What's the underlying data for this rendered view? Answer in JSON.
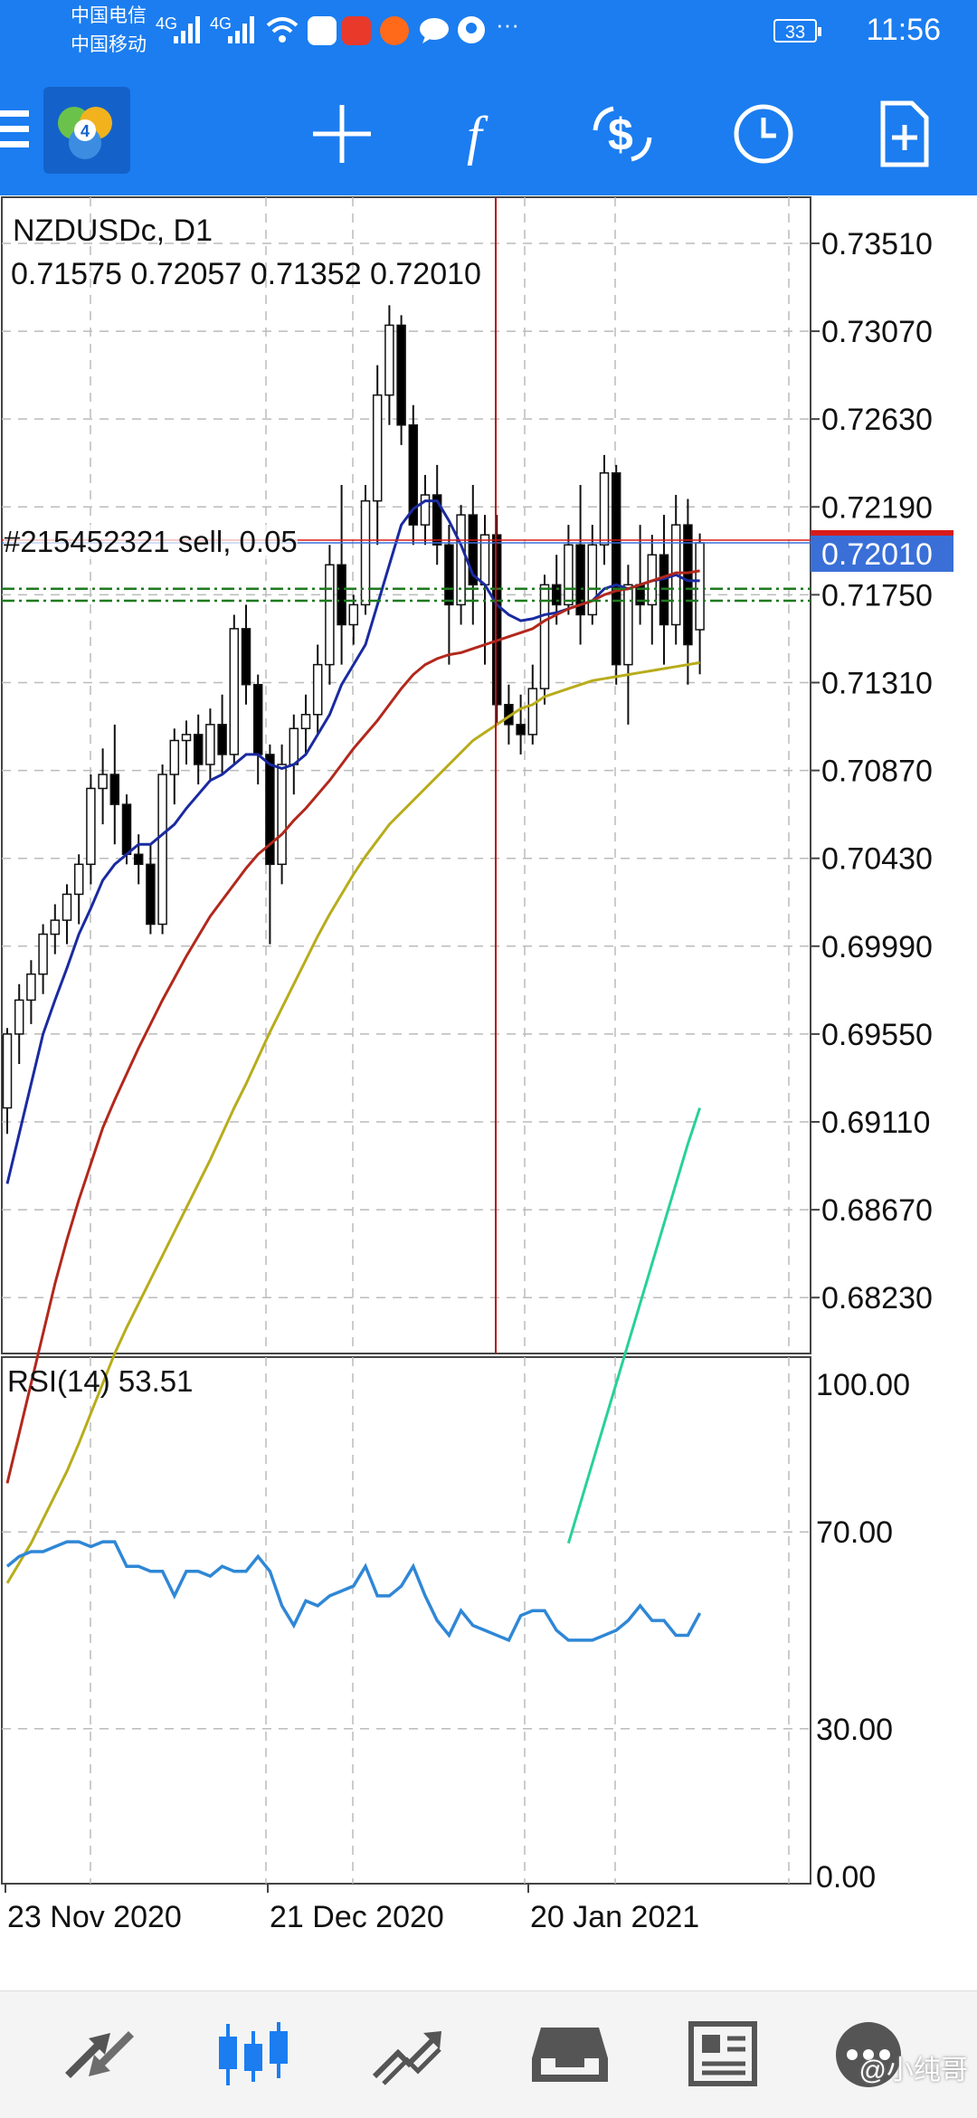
{
  "status_bar": {
    "carrier1": "中国电信",
    "carrier2": "中国移动",
    "network1": "4G",
    "network2": "4G",
    "battery": "33",
    "time": "11:56",
    "more": "···"
  },
  "toolbar": {
    "menu_icon": "menu-icon",
    "logo_icon": "metatrader-logo-icon",
    "crosshair_icon": "crosshair-icon",
    "indicators_icon": "function-icon",
    "objects_icon": "currency-exchange-icon",
    "period_icon": "clock-icon",
    "new_order_icon": "new-order-icon"
  },
  "main_chart": {
    "symbol_title": "NZDUSDc, D1",
    "ohlc": "0.71575 0.72057 0.71352 0.72010",
    "order_label": "#215452321 sell, 0.05",
    "current_price": "0.72010",
    "price_axis": [
      "0.73510",
      "0.73070",
      "0.72630",
      "0.72190",
      "0.71750",
      "0.71310",
      "0.70870",
      "0.70430",
      "0.69990",
      "0.69550",
      "0.69110",
      "0.68670",
      "0.68230"
    ],
    "colors": {
      "bull": "#ffffff",
      "bear": "#000000",
      "ma_fast": "#1a2aa0",
      "ma_mid": "#b2281c",
      "ma_slow": "#b8ac1c",
      "ma_long": "#27d19a",
      "price_line": "#d81b1b",
      "bid_line": "#3a6fd8",
      "crosshair": "#b01818",
      "order_line": "#1f7a1f"
    }
  },
  "rsi": {
    "title": "RSI(14) 53.51",
    "axis": [
      "100.00",
      "70.00",
      "30.00",
      "0.00"
    ],
    "color": "#2f87d6"
  },
  "time_axis": [
    "23 Nov 2020",
    "21 Dec 2020",
    "20 Jan 2021"
  ],
  "chart_data": {
    "type": "candlestick",
    "symbol": "NZDUSDc",
    "timeframe": "D1",
    "y_range": [
      0.6795,
      0.7375
    ],
    "candles": [
      [
        0.6918,
        0.6958,
        0.6905,
        0.6955
      ],
      [
        0.6955,
        0.698,
        0.694,
        0.6972
      ],
      [
        0.6972,
        0.6992,
        0.696,
        0.6985
      ],
      [
        0.6985,
        0.701,
        0.6975,
        0.7005
      ],
      [
        0.7005,
        0.702,
        0.6995,
        0.7012
      ],
      [
        0.7012,
        0.703,
        0.7,
        0.7025
      ],
      [
        0.7025,
        0.7045,
        0.701,
        0.704
      ],
      [
        0.704,
        0.7085,
        0.703,
        0.7078
      ],
      [
        0.7078,
        0.7098,
        0.706,
        0.7085
      ],
      [
        0.7085,
        0.711,
        0.705,
        0.707
      ],
      [
        0.707,
        0.7075,
        0.704,
        0.7045
      ],
      [
        0.7045,
        0.7055,
        0.703,
        0.704
      ],
      [
        0.704,
        0.705,
        0.7005,
        0.701
      ],
      [
        0.701,
        0.709,
        0.7005,
        0.7085
      ],
      [
        0.7085,
        0.7108,
        0.707,
        0.7102
      ],
      [
        0.7102,
        0.7112,
        0.709,
        0.7105
      ],
      [
        0.7105,
        0.7115,
        0.708,
        0.709
      ],
      [
        0.709,
        0.7118,
        0.7082,
        0.711
      ],
      [
        0.711,
        0.7125,
        0.7085,
        0.7095
      ],
      [
        0.7095,
        0.7165,
        0.709,
        0.7158
      ],
      [
        0.7158,
        0.717,
        0.712,
        0.713
      ],
      [
        0.713,
        0.7135,
        0.708,
        0.7095
      ],
      [
        0.7095,
        0.71,
        0.7,
        0.704
      ],
      [
        0.704,
        0.71,
        0.703,
        0.709
      ],
      [
        0.709,
        0.7115,
        0.7075,
        0.7108
      ],
      [
        0.7108,
        0.7125,
        0.7095,
        0.7115
      ],
      [
        0.7115,
        0.715,
        0.7105,
        0.714
      ],
      [
        0.714,
        0.72,
        0.713,
        0.719
      ],
      [
        0.719,
        0.723,
        0.714,
        0.716
      ],
      [
        0.716,
        0.7175,
        0.715,
        0.717
      ],
      [
        0.717,
        0.723,
        0.7165,
        0.7222
      ],
      [
        0.7222,
        0.729,
        0.72,
        0.7275
      ],
      [
        0.7275,
        0.732,
        0.726,
        0.731
      ],
      [
        0.731,
        0.7315,
        0.725,
        0.726
      ],
      [
        0.726,
        0.727,
        0.72,
        0.721
      ],
      [
        0.721,
        0.7235,
        0.72,
        0.7225
      ],
      [
        0.7225,
        0.724,
        0.719,
        0.72
      ],
      [
        0.72,
        0.721,
        0.714,
        0.717
      ],
      [
        0.717,
        0.722,
        0.716,
        0.7215
      ],
      [
        0.7215,
        0.723,
        0.716,
        0.718
      ],
      [
        0.718,
        0.7215,
        0.714,
        0.7205
      ],
      [
        0.7205,
        0.7215,
        0.711,
        0.712
      ],
      [
        0.712,
        0.713,
        0.71,
        0.711
      ],
      [
        0.711,
        0.7125,
        0.7095,
        0.7105
      ],
      [
        0.7105,
        0.714,
        0.71,
        0.7128
      ],
      [
        0.7128,
        0.7185,
        0.712,
        0.718
      ],
      [
        0.718,
        0.7195,
        0.716,
        0.717
      ],
      [
        0.717,
        0.721,
        0.7165,
        0.72
      ],
      [
        0.72,
        0.723,
        0.715,
        0.7165
      ],
      [
        0.7165,
        0.721,
        0.716,
        0.72
      ],
      [
        0.72,
        0.7245,
        0.719,
        0.7236
      ],
      [
        0.7236,
        0.724,
        0.713,
        0.714
      ],
      [
        0.714,
        0.719,
        0.711,
        0.718
      ],
      [
        0.718,
        0.721,
        0.716,
        0.717
      ],
      [
        0.717,
        0.7205,
        0.715,
        0.7195
      ],
      [
        0.7195,
        0.7215,
        0.714,
        0.716
      ],
      [
        0.716,
        0.7225,
        0.715,
        0.721
      ],
      [
        0.721,
        0.7223,
        0.713,
        0.715
      ],
      [
        0.71575,
        0.72057,
        0.71352,
        0.7201
      ]
    ],
    "ma_fast": [
      0.688,
      0.6905,
      0.693,
      0.6955,
      0.6972,
      0.6988,
      0.7005,
      0.7018,
      0.7032,
      0.704,
      0.7045,
      0.705,
      0.705,
      0.7055,
      0.706,
      0.7068,
      0.7075,
      0.7082,
      0.7085,
      0.709,
      0.7095,
      0.7095,
      0.709,
      0.7088,
      0.709,
      0.7095,
      0.7105,
      0.7115,
      0.713,
      0.714,
      0.715,
      0.717,
      0.719,
      0.721,
      0.7218,
      0.7222,
      0.7222,
      0.7212,
      0.72,
      0.7185,
      0.718,
      0.717,
      0.7165,
      0.7162,
      0.7163,
      0.7165,
      0.7166,
      0.7168,
      0.717,
      0.7172,
      0.7178,
      0.718,
      0.7178,
      0.718,
      0.7182,
      0.7183,
      0.7185,
      0.7182,
      0.7182
    ],
    "ma_mid": [
      0.673,
      0.6755,
      0.678,
      0.6805,
      0.683,
      0.6852,
      0.6872,
      0.689,
      0.6908,
      0.6922,
      0.6935,
      0.6948,
      0.696,
      0.6972,
      0.6983,
      0.6994,
      0.7004,
      0.7014,
      0.7022,
      0.703,
      0.7038,
      0.7045,
      0.705,
      0.7055,
      0.7062,
      0.7068,
      0.7075,
      0.7082,
      0.709,
      0.7098,
      0.7105,
      0.7112,
      0.712,
      0.7128,
      0.7135,
      0.714,
      0.7143,
      0.7145,
      0.7146,
      0.7148,
      0.715,
      0.7152,
      0.7154,
      0.7156,
      0.7158,
      0.7162,
      0.7165,
      0.7168,
      0.717,
      0.7172,
      0.7175,
      0.7177,
      0.7178,
      0.718,
      0.7182,
      0.7184,
      0.7186,
      0.7186,
      0.7187
    ],
    "ma_slow": [
      0.668,
      0.669,
      0.67,
      0.6712,
      0.6724,
      0.6736,
      0.675,
      0.6765,
      0.678,
      0.6795,
      0.6808,
      0.682,
      0.6832,
      0.6844,
      0.6856,
      0.6868,
      0.688,
      0.6892,
      0.6905,
      0.6918,
      0.693,
      0.6943,
      0.6956,
      0.6968,
      0.698,
      0.6992,
      0.7004,
      0.7015,
      0.7025,
      0.7035,
      0.7044,
      0.7052,
      0.706,
      0.7066,
      0.7072,
      0.7078,
      0.7084,
      0.709,
      0.7096,
      0.7102,
      0.7106,
      0.711,
      0.7114,
      0.7118,
      0.712,
      0.7124,
      0.7126,
      0.7128,
      0.713,
      0.7132,
      0.7133,
      0.7134,
      0.7135,
      0.7136,
      0.7137,
      0.7138,
      0.7139,
      0.714,
      0.7141
    ],
    "ma_long": [
      0.67,
      0.672,
      0.674,
      0.676,
      0.678,
      0.68,
      0.682,
      0.684,
      0.686,
      0.688,
      0.69,
      0.6918
    ],
    "rsi_values": [
      63,
      65,
      66,
      66,
      67,
      68,
      68,
      67,
      68,
      68,
      63,
      63,
      62,
      62,
      57,
      62,
      62,
      61,
      63,
      62,
      62,
      65,
      62,
      55,
      51,
      56,
      55,
      57,
      58,
      59,
      63,
      57,
      57,
      59,
      63,
      57,
      52,
      49,
      54,
      51,
      50,
      49,
      48,
      53,
      54,
      54,
      50,
      48,
      48,
      48,
      49,
      50,
      52,
      55,
      52,
      52,
      49,
      49,
      53.51
    ],
    "rsi_levels": [
      70,
      30
    ],
    "order_type": "sell",
    "order_volume": "0.05"
  },
  "bottom_nav": {
    "quotes_icon": "quotes-icon",
    "chart_icon": "candlestick-chart-icon",
    "trade_icon": "trade-icon",
    "history_icon": "history-icon",
    "news_icon": "news-icon",
    "messages_icon": "chat-icon",
    "watermark": "@小纯哥"
  }
}
